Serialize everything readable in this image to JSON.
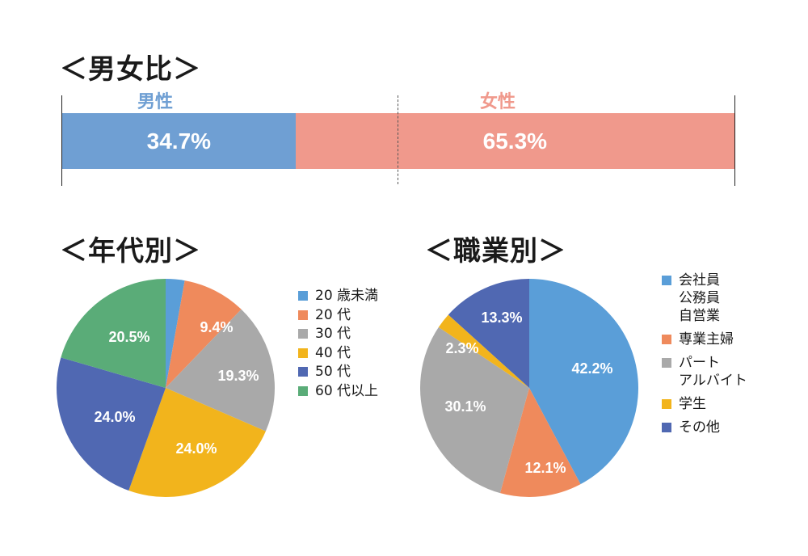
{
  "gender": {
    "title": "＜男女比＞",
    "male_label": "男性",
    "female_label": "女性",
    "male_value": "34.7%",
    "female_value": "65.3%",
    "male_share": 34.7,
    "female_share": 65.3,
    "male_color": "#6f9fd3",
    "female_color": "#f0998c",
    "male_label_color": "#6f9fd3",
    "female_label_color": "#f0998c"
  },
  "age": {
    "title": "＜年代別＞"
  },
  "job": {
    "title": "＜職業別＞"
  },
  "chart_data": [
    {
      "type": "bar",
      "title": "＜男女比＞",
      "orientation": "stacked-horizontal",
      "categories": [
        "男性",
        "女性"
      ],
      "values": [
        34.7,
        65.3
      ],
      "colors": [
        "#6f9fd3",
        "#f0998c"
      ]
    },
    {
      "type": "pie",
      "title": "＜年代別＞",
      "categories": [
        "20 歳未満",
        "20 代",
        "30 代",
        "40 代",
        "50 代",
        "60 代以上"
      ],
      "values": [
        2.8,
        9.4,
        19.3,
        24.0,
        24.0,
        20.5
      ],
      "labels": [
        "",
        "9.4%",
        "19.3%",
        "24.0%",
        "24.0%",
        "20.5%"
      ],
      "colors": [
        "#5a9ed8",
        "#ef8a5c",
        "#a9a9a9",
        "#f2b41c",
        "#5068b2",
        "#5aac78"
      ]
    },
    {
      "type": "pie",
      "title": "＜職業別＞",
      "categories": [
        "会社員\n公務員\n自営業",
        "専業主婦",
        "パート\nアルバイト",
        "学生",
        "その他"
      ],
      "values": [
        42.2,
        12.1,
        30.1,
        2.3,
        13.3
      ],
      "labels": [
        "42.2%",
        "12.1%",
        "30.1%",
        "2.3%",
        "13.3%"
      ],
      "colors": [
        "#5a9ed8",
        "#ef8a5c",
        "#a9a9a9",
        "#f2b41c",
        "#5068b2"
      ]
    }
  ]
}
